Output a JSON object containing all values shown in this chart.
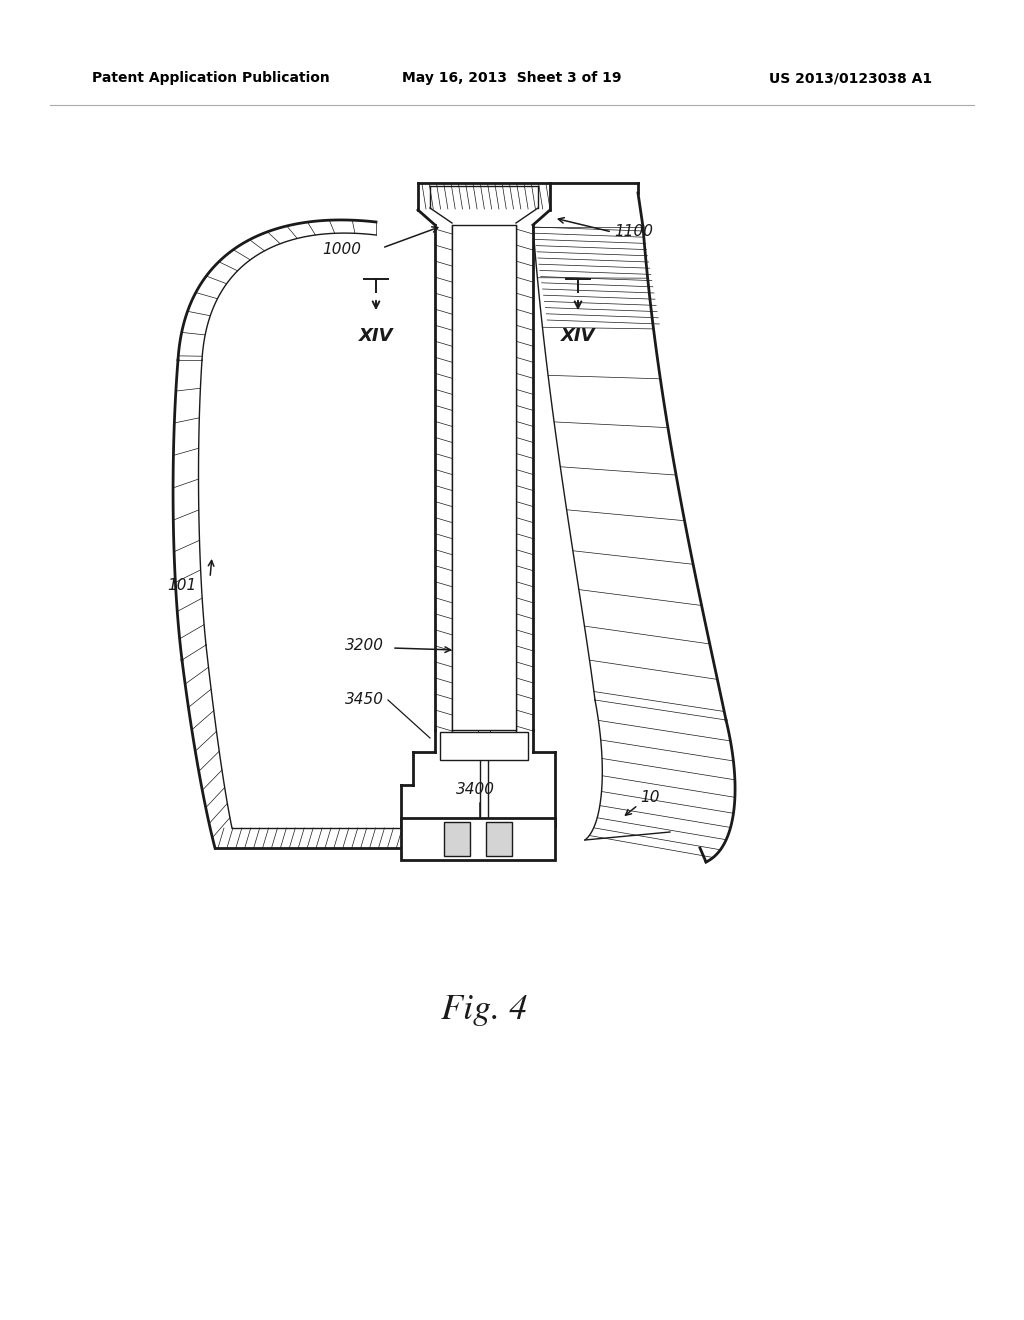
{
  "bg_color": "#ffffff",
  "line_color": "#1a1a1a",
  "header_left": "Patent Application Publication",
  "header_mid": "May 16, 2013  Sheet 3 of 19",
  "header_right": "US 2013/0123038 A1",
  "fig_caption": "Fig. 4",
  "label_fontsize": 11,
  "header_fontsize": 10,
  "caption_fontsize": 26
}
